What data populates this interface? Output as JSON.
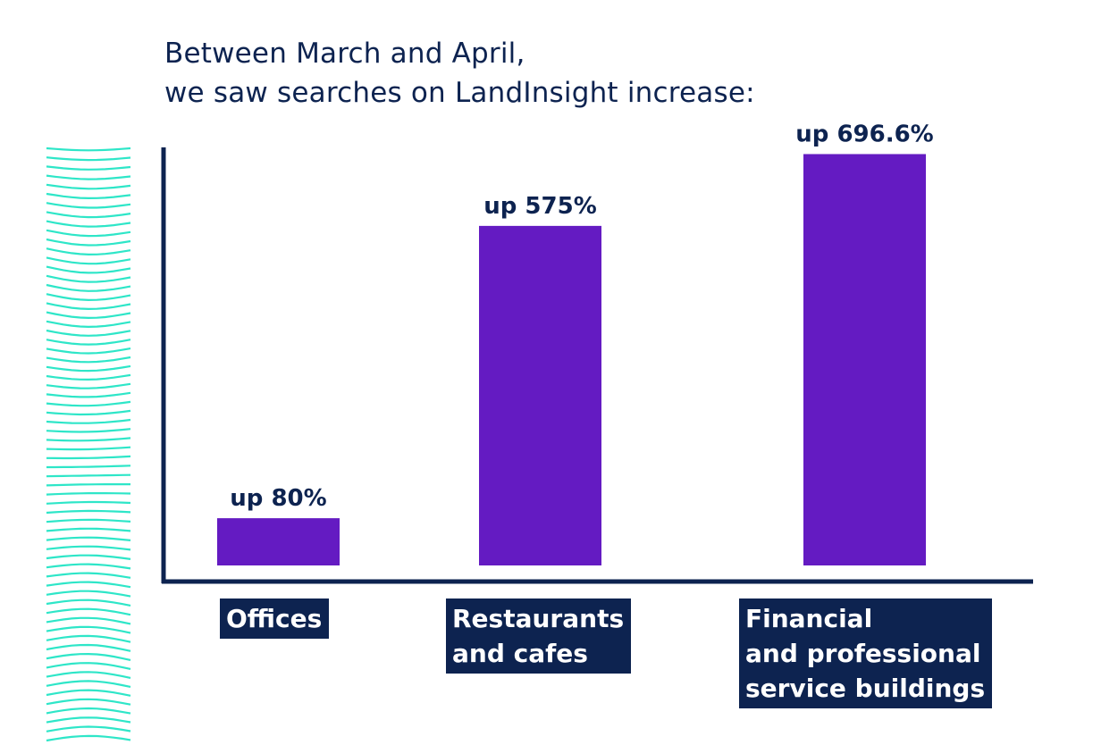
{
  "title_lines": [
    "Between March and April,",
    "we saw searches on LandInsight increase:"
  ],
  "colors": {
    "bar": "#641bc2",
    "axis": "#0d2350",
    "label_bg": "#0d2350",
    "text": "#0d2350",
    "decor": "#2ee6c8"
  },
  "chart_data": {
    "type": "bar",
    "title": "",
    "xlabel": "",
    "ylabel": "",
    "categories": [
      [
        "Offices"
      ],
      [
        "Restaurants",
        "and cafes"
      ],
      [
        "Financial",
        "and professional",
        "service buildings"
      ]
    ],
    "values": [
      80,
      575,
      696.6
    ],
    "data_labels": [
      "up 80%",
      "up 575%",
      "up 696.6%"
    ],
    "unit": "%",
    "ylim": [
      0,
      776
    ],
    "grid": false,
    "legend": "none"
  }
}
